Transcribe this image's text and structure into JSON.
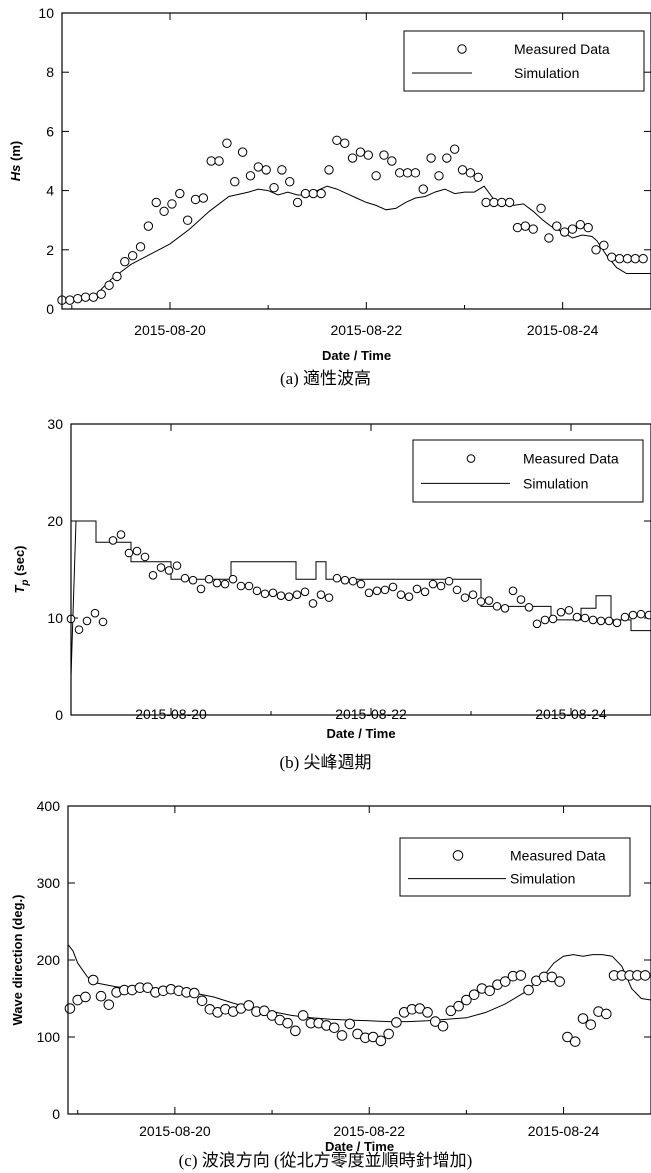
{
  "captions": [
    "(a) 適性波高",
    "(b) 尖峰週期",
    "(c) 波浪方向 (從北方零度並順時針增加)"
  ],
  "chart_data": [
    {
      "type": "scatter",
      "xlabel": "Date / Time",
      "ylabel": "Hs (m)",
      "ylabel_main": "Hs",
      "ylabel_sub": "",
      "ylabel_unit": " (m)",
      "ylim": [
        0,
        10
      ],
      "yticks": [
        0,
        2,
        4,
        6,
        8,
        10
      ],
      "xlim": [
        -1.1,
        4.9
      ],
      "xticks": [
        {
          "value": 0,
          "label": "2015-08-20"
        },
        {
          "value": 2,
          "label": "2015-08-22"
        },
        {
          "value": 4,
          "label": "2015-08-24"
        }
      ],
      "legend": [
        "Measured Data",
        "Simulation"
      ],
      "legend_position": "top-right",
      "grid": false,
      "series": [
        {
          "name": "Measured Data",
          "style": "circles",
          "x": [
            -1.1,
            -1.02,
            -0.94,
            -0.86,
            -0.78,
            -0.7,
            -0.62,
            -0.54,
            -0.46,
            -0.38,
            -0.3,
            -0.22,
            -0.14,
            -0.06,
            0.02,
            0.1,
            0.18,
            0.26,
            0.34,
            0.42,
            0.5,
            0.58,
            0.66,
            0.74,
            0.82,
            0.9,
            0.98,
            1.06,
            1.14,
            1.22,
            1.3,
            1.38,
            1.46,
            1.54,
            1.62,
            1.7,
            1.78,
            1.86,
            1.94,
            2.02,
            2.1,
            2.18,
            2.26,
            2.34,
            2.42,
            2.5,
            2.58,
            2.66,
            2.74,
            2.82,
            2.9,
            2.98,
            3.06,
            3.14,
            3.22,
            3.3,
            3.38,
            3.46,
            3.54,
            3.62,
            3.7,
            3.78,
            3.86,
            3.94,
            4.02,
            4.1,
            4.18,
            4.26,
            4.34,
            4.42,
            4.5,
            4.58,
            4.66,
            4.74,
            4.82
          ],
          "y": [
            0.3,
            0.3,
            0.35,
            0.4,
            0.4,
            0.5,
            0.8,
            1.1,
            1.6,
            1.8,
            2.1,
            2.8,
            3.6,
            3.3,
            3.55,
            3.9,
            3.0,
            3.7,
            3.75,
            5.0,
            5.0,
            5.6,
            4.3,
            5.3,
            4.5,
            4.8,
            4.7,
            4.1,
            4.7,
            4.3,
            3.6,
            3.9,
            3.9,
            3.9,
            4.7,
            5.7,
            5.6,
            5.1,
            5.3,
            5.2,
            4.5,
            5.2,
            5.0,
            4.6,
            4.6,
            4.6,
            4.05,
            5.1,
            4.5,
            5.1,
            5.4,
            4.7,
            4.6,
            4.45,
            3.6,
            3.6,
            3.6,
            3.6,
            2.75,
            2.8,
            2.7,
            3.4,
            2.4,
            2.8,
            2.6,
            2.7,
            2.85,
            2.75,
            2.0,
            2.15,
            1.75,
            1.7,
            1.7,
            1.7,
            1.7
          ]
        },
        {
          "name": "Simulation",
          "style": "line",
          "x": [
            -1.1,
            -0.9,
            -0.75,
            -0.6,
            -0.4,
            -0.2,
            0,
            0.2,
            0.4,
            0.6,
            0.8,
            0.9,
            1.0,
            1.1,
            1.2,
            1.3,
            1.4,
            1.5,
            1.6,
            1.7,
            1.8,
            1.9,
            2.0,
            2.1,
            2.2,
            2.3,
            2.4,
            2.5,
            2.6,
            2.7,
            2.8,
            2.9,
            3.0,
            3.1,
            3.2,
            3.3,
            3.4,
            3.5,
            3.6,
            3.7,
            3.8,
            3.9,
            4.0,
            4.1,
            4.2,
            4.3,
            4.35,
            4.45,
            4.55,
            4.65,
            4.75,
            4.9
          ],
          "y": [
            0.3,
            0.35,
            0.5,
            1.0,
            1.5,
            1.85,
            2.2,
            2.7,
            3.3,
            3.8,
            3.95,
            4.05,
            4.0,
            3.85,
            3.95,
            3.85,
            3.85,
            4.0,
            4.15,
            4.05,
            3.9,
            3.75,
            3.6,
            3.5,
            3.35,
            3.4,
            3.6,
            3.75,
            3.8,
            3.95,
            4.05,
            3.9,
            3.95,
            3.95,
            4.15,
            3.7,
            3.6,
            3.5,
            3.55,
            3.3,
            3.0,
            2.75,
            2.6,
            2.4,
            2.5,
            2.45,
            2.3,
            1.8,
            1.4,
            1.2,
            1.2,
            1.2
          ]
        }
      ]
    },
    {
      "type": "scatter",
      "xlabel": "Date / Time",
      "ylabel": "Tp (sec)",
      "ylabel_main": "T",
      "ylabel_sub": "p",
      "ylabel_unit": " (sec)",
      "ylim": [
        0,
        30
      ],
      "yticks": [
        0,
        10,
        20,
        30
      ],
      "xlim": [
        -1.0,
        4.8
      ],
      "xticks": [
        {
          "value": 0,
          "label": "2015-08-20"
        },
        {
          "value": 2,
          "label": "2015-08-22"
        },
        {
          "value": 4,
          "label": "2015-08-24"
        }
      ],
      "legend": [
        "Measured Data",
        "Simulation"
      ],
      "legend_position": "top-right",
      "grid": false,
      "series": [
        {
          "name": "Measured Data",
          "style": "circles",
          "x": [
            -1.0,
            -0.92,
            -0.84,
            -0.76,
            -0.68,
            -0.58,
            -0.5,
            -0.42,
            -0.34,
            -0.26,
            -0.18,
            -0.1,
            -0.02,
            0.06,
            0.14,
            0.22,
            0.3,
            0.38,
            0.46,
            0.54,
            0.62,
            0.7,
            0.78,
            0.86,
            0.94,
            1.02,
            1.1,
            1.18,
            1.26,
            1.34,
            1.42,
            1.5,
            1.58,
            1.66,
            1.74,
            1.82,
            1.9,
            1.98,
            2.06,
            2.14,
            2.22,
            2.3,
            2.38,
            2.46,
            2.54,
            2.62,
            2.7,
            2.78,
            2.86,
            2.94,
            3.02,
            3.1,
            3.18,
            3.26,
            3.34,
            3.42,
            3.5,
            3.58,
            3.66,
            3.74,
            3.82,
            3.9,
            3.98,
            4.06,
            4.14,
            4.22,
            4.3,
            4.38,
            4.46,
            4.54,
            4.62,
            4.7,
            4.78
          ],
          "y": [
            9.9,
            8.8,
            9.7,
            10.5,
            9.6,
            18,
            18.6,
            16.7,
            16.9,
            16.3,
            14.4,
            15.2,
            14.9,
            15.4,
            14.1,
            13.9,
            13.0,
            14.0,
            13.6,
            13.5,
            14.0,
            13.3,
            13.3,
            12.8,
            12.5,
            12.6,
            12.3,
            12.2,
            12.4,
            12.7,
            11.5,
            12.4,
            12.1,
            14.1,
            13.9,
            13.8,
            13.5,
            12.6,
            12.8,
            12.9,
            13.2,
            12.4,
            12.2,
            13.0,
            12.7,
            13.5,
            13.3,
            13.8,
            12.9,
            12.1,
            12.4,
            11.7,
            11.8,
            11.2,
            11.0,
            12.8,
            11.9,
            11.1,
            9.4,
            9.8,
            9.9,
            10.6,
            10.8,
            10.1,
            10.0,
            9.8,
            9.7,
            9.7,
            9.5,
            10.1,
            10.3,
            10.4,
            10.3
          ]
        },
        {
          "name": "Simulation",
          "style": "line",
          "x": [
            -1.0,
            -0.95,
            -0.95,
            -0.75,
            -0.75,
            -0.55,
            -0.55,
            -0.4,
            -0.4,
            0.0,
            0.0,
            0.6,
            0.6,
            1.25,
            1.25,
            1.45,
            1.45,
            1.55,
            1.55,
            1.65,
            1.65,
            1.75,
            1.75,
            2.95,
            2.95,
            3.1,
            3.1,
            3.8,
            3.8,
            4.1,
            4.1,
            4.25,
            4.25,
            4.4,
            4.4,
            4.6,
            4.6,
            4.8
          ],
          "y": [
            4.0,
            20.0,
            20.0,
            20.0,
            17.8,
            17.8,
            17.8,
            17.8,
            15.8,
            15.8,
            14.0,
            14.0,
            15.8,
            15.8,
            14.0,
            14.0,
            15.8,
            15.8,
            14.0,
            14.0,
            14.0,
            14.0,
            14.0,
            14.0,
            14.0,
            14.0,
            11.2,
            11.2,
            9.8,
            9.8,
            11.0,
            11.0,
            12.3,
            12.3,
            9.8,
            9.8,
            8.7,
            8.7
          ]
        }
      ]
    },
    {
      "type": "scatter",
      "xlabel": "Date / Time",
      "ylabel": "Wave direction (deg.)",
      "ylabel_main": "Wave direction",
      "ylabel_sub": "",
      "ylabel_unit": " (deg.)",
      "ylim": [
        0,
        400
      ],
      "yticks": [
        0,
        100,
        200,
        300,
        400
      ],
      "xlim": [
        -1.1,
        4.9
      ],
      "xticks": [
        {
          "value": 0,
          "label": "2015-08-20"
        },
        {
          "value": 2,
          "label": "2015-08-22"
        },
        {
          "value": 4,
          "label": "2015-08-24"
        }
      ],
      "legend": [
        "Measured Data",
        "Simulation"
      ],
      "legend_position": "top-right",
      "grid": false,
      "series": [
        {
          "name": "Measured Data",
          "style": "circles",
          "x": [
            -1.08,
            -1.0,
            -0.92,
            -0.84,
            -0.76,
            -0.68,
            -0.6,
            -0.52,
            -0.44,
            -0.36,
            -0.28,
            -0.2,
            -0.12,
            -0.04,
            0.04,
            0.12,
            0.2,
            0.28,
            0.36,
            0.44,
            0.52,
            0.6,
            0.68,
            0.76,
            0.84,
            0.92,
            1.0,
            1.08,
            1.16,
            1.24,
            1.32,
            1.4,
            1.48,
            1.56,
            1.64,
            1.72,
            1.8,
            1.88,
            1.96,
            2.04,
            2.12,
            2.2,
            2.28,
            2.36,
            2.44,
            2.52,
            2.6,
            2.68,
            2.76,
            2.84,
            2.92,
            3.0,
            3.08,
            3.16,
            3.24,
            3.32,
            3.4,
            3.48,
            3.56,
            3.64,
            3.72,
            3.8,
            3.88,
            3.96,
            4.04,
            4.12,
            4.2,
            4.28,
            4.36,
            4.44,
            4.52,
            4.6,
            4.68,
            4.76,
            4.84
          ],
          "y": [
            137,
            148,
            152,
            174,
            153,
            142,
            158,
            161,
            161,
            164,
            164,
            158,
            160,
            162,
            160,
            158,
            157,
            147,
            136,
            132,
            136,
            133,
            137,
            141,
            133,
            134,
            128,
            122,
            118,
            108,
            128,
            118,
            118,
            115,
            112,
            102,
            117,
            104,
            99,
            100,
            95,
            104,
            119,
            132,
            136,
            137,
            132,
            120,
            114,
            134,
            140,
            148,
            155,
            163,
            160,
            168,
            172,
            179,
            180,
            161,
            173,
            178,
            178,
            172,
            100,
            94,
            124,
            116,
            133,
            130,
            180,
            180,
            180,
            180,
            180
          ]
        },
        {
          "name": "Simulation",
          "style": "line",
          "x": [
            -1.1,
            -1.05,
            -1.0,
            -0.9,
            -0.8,
            -0.6,
            -0.4,
            -0.2,
            0.0,
            0.2,
            0.4,
            0.6,
            0.8,
            1.0,
            1.2,
            1.4,
            1.6,
            1.8,
            2.0,
            2.2,
            2.4,
            2.6,
            2.8,
            3.0,
            3.2,
            3.4,
            3.6,
            3.8,
            3.9,
            4.0,
            4.1,
            4.2,
            4.3,
            4.4,
            4.5,
            4.6,
            4.7,
            4.8,
            4.9
          ],
          "y": [
            220,
            212,
            196,
            178,
            170,
            165,
            163,
            162,
            160,
            157,
            152,
            144,
            137,
            133,
            128,
            125,
            123,
            122,
            121,
            120,
            120,
            121,
            123,
            125,
            132,
            143,
            158,
            180,
            196,
            205,
            207,
            205,
            207,
            207,
            205,
            192,
            163,
            150,
            148
          ]
        }
      ]
    }
  ]
}
